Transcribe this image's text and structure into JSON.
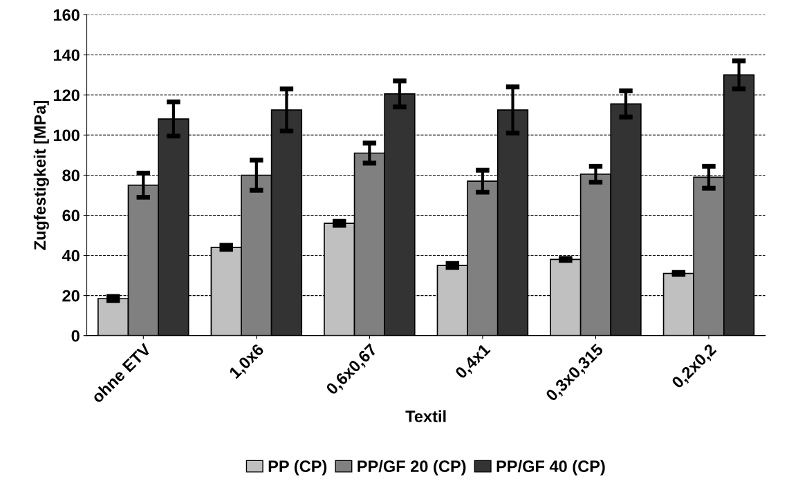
{
  "chart_data": {
    "type": "bar",
    "xlabel": "Textil",
    "ylabel": "Zugfestigkeit [MPa]",
    "categories": [
      "ohne ETV",
      "1,0x6",
      "0,6x0,67",
      "0,4x1",
      "0,3x0,315",
      "0,2x0,2"
    ],
    "series": [
      {
        "name": "PP (CP)",
        "color": "#c0c0c0",
        "values": [
          18.5,
          44,
          56,
          35,
          38,
          31
        ],
        "errors": [
          1,
          1,
          1,
          1,
          0.5,
          0.5
        ]
      },
      {
        "name": "PP/GF 20 (CP)",
        "color": "#808080",
        "values": [
          75,
          80,
          91,
          77,
          80.5,
          79
        ],
        "errors": [
          6,
          7.5,
          5,
          5.5,
          4,
          5.5
        ]
      },
      {
        "name": "PP/GF 40 (CP)",
        "color": "#333333",
        "values": [
          108,
          112.5,
          120.5,
          112.5,
          115.5,
          130
        ],
        "errors": [
          8.5,
          10.5,
          6.5,
          11.5,
          6.5,
          7
        ]
      }
    ],
    "ylim": [
      0,
      160
    ],
    "yticks": [
      0,
      20,
      40,
      60,
      80,
      100,
      120,
      140,
      160
    ],
    "grid": "y",
    "legend": "bottom"
  }
}
